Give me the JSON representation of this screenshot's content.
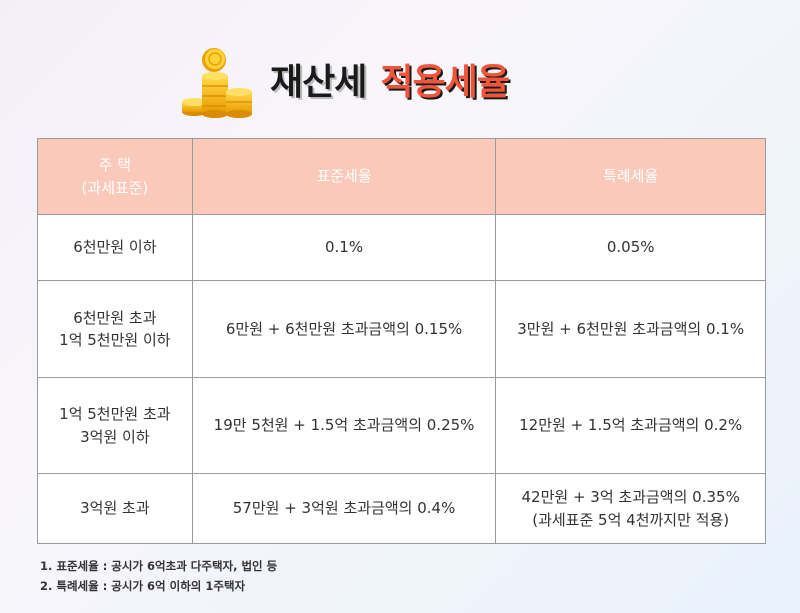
{
  "title": {
    "part1": "재산세",
    "part2": "적용세율"
  },
  "colors": {
    "header_bg": "#fbc9ba",
    "accent": "#f0553a",
    "coin": "#f5b800"
  },
  "icons": {
    "coins": "gold-coin-stack-icon"
  },
  "table": {
    "headers": [
      "주 택\n(과세표준)",
      "표준세율",
      "특례세율"
    ],
    "rows": [
      [
        "6천만원 이하",
        "0.1%",
        "0.05%"
      ],
      [
        "6천만원 초과\n1억 5천만원 이하",
        "6만원 + 6천만원 초과금액의 0.15%",
        "3만원 + 6천만원 초과금액의 0.1%"
      ],
      [
        "1억 5천만원 초과\n3억원 이하",
        "19만 5천원 + 1.5억 초과금액의 0.25%",
        "12만원 + 1.5억 초과금액의 0.2%"
      ],
      [
        "3억원 초과",
        "57만원 + 3억원 초과금액의 0.4%",
        "42만원 + 3억 초과금액의 0.35%\n(과세표준 5억 4천까지만 적용)"
      ]
    ]
  },
  "notes": [
    "1. 표준세율 : 공시가 6억초과 다주택자, 법인 등",
    "2. 특례세율 : 공시가 6억 이하의 1주택자"
  ]
}
